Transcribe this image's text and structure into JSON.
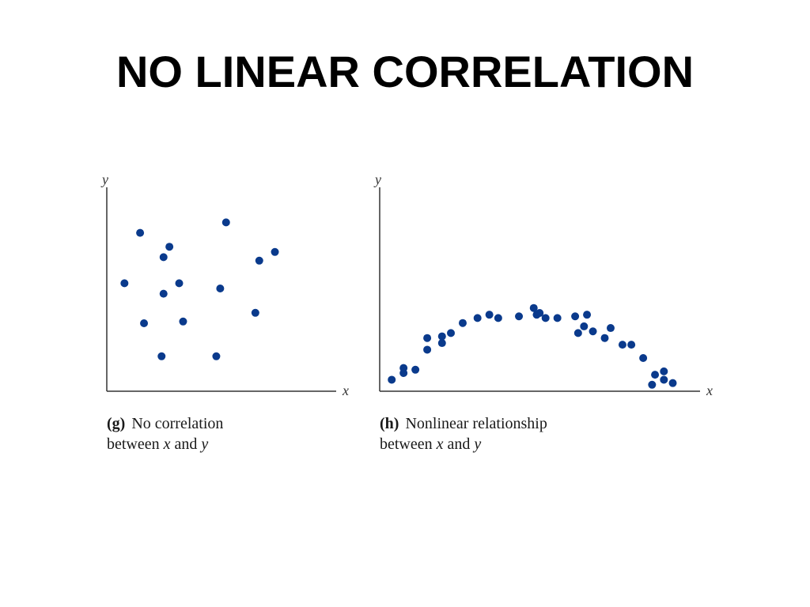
{
  "title": "NO LINEAR CORRELATION",
  "colors": {
    "point": "#0a3a8c",
    "axis": "#333333",
    "text": "#000000"
  },
  "captions": {
    "g": {
      "letter": "(g)",
      "line1": "No correlation",
      "line2_pre": "between ",
      "var_x": "x",
      "line2_mid": " and ",
      "var_y": "y"
    },
    "h": {
      "letter": "(h)",
      "line1": "Nonlinear relationship",
      "line2_pre": "between ",
      "var_x": "x",
      "line2_mid": " and ",
      "var_y": "y"
    }
  },
  "chart_data": [
    {
      "type": "scatter",
      "xlabel": "x",
      "ylabel": "y",
      "xlim": [
        0,
        100
      ],
      "ylim": [
        0,
        100
      ],
      "x": [
        5,
        13,
        15,
        24,
        25,
        25,
        28,
        33,
        35,
        52,
        54,
        57,
        72,
        74,
        82
      ],
      "y": [
        53,
        82,
        30,
        11,
        68,
        47,
        74,
        53,
        31,
        11,
        50,
        88,
        36,
        66,
        71
      ]
    },
    {
      "type": "scatter",
      "xlabel": "x",
      "ylabel": "y",
      "xlim": [
        0,
        100
      ],
      "ylim": [
        0,
        100
      ],
      "x": [
        3,
        7,
        7,
        11,
        15,
        15,
        20,
        20,
        23,
        27,
        32,
        36,
        39,
        46,
        51,
        52,
        53,
        55,
        59,
        65,
        66,
        68,
        69,
        71,
        75,
        77,
        81,
        84,
        88,
        91,
        92,
        95,
        95,
        98
      ],
      "y": [
        5,
        9,
        12,
        11,
        23,
        30,
        27,
        31,
        33,
        39,
        42,
        44,
        42,
        43,
        48,
        44,
        45,
        42,
        42,
        43,
        33,
        37,
        44,
        34,
        30,
        36,
        26,
        26,
        18,
        2,
        8,
        10,
        5,
        3
      ]
    }
  ]
}
